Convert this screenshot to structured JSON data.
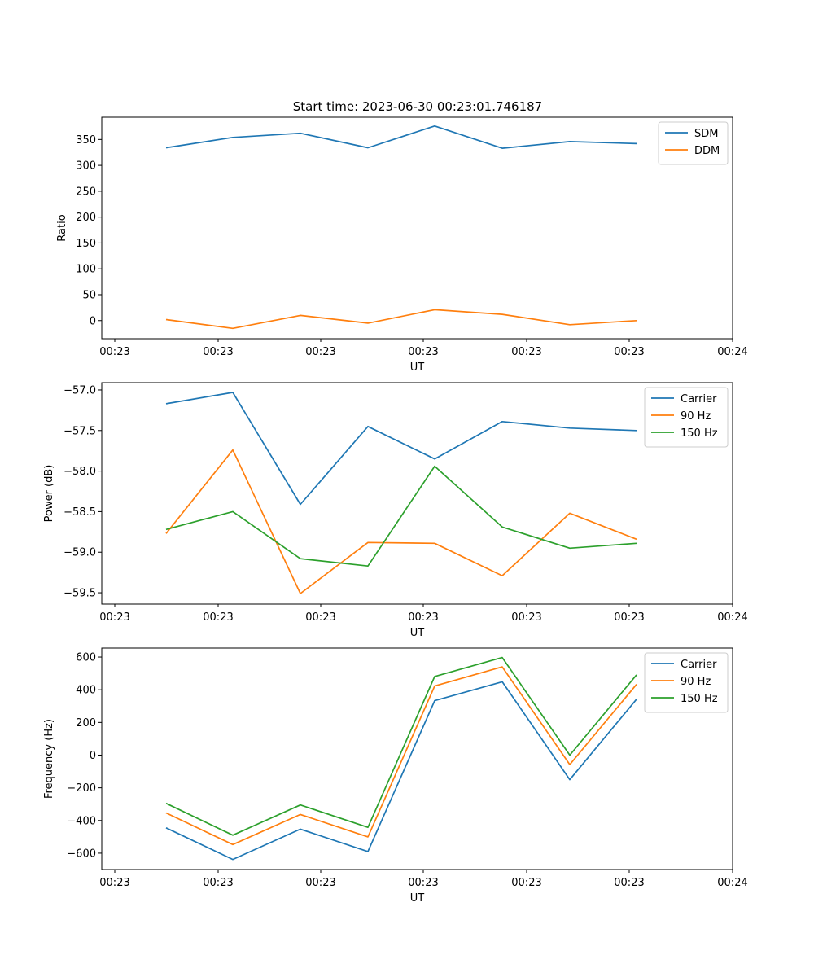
{
  "title": "Start time: 2023-06-30 00:23:01.746187",
  "colors": {
    "blue": "#1f77b4",
    "orange": "#ff7f0e",
    "green": "#2ca02c",
    "axis": "#000000",
    "legend_border": "#cccccc"
  },
  "chart_data": [
    {
      "type": "line",
      "title": "Start time: 2023-06-30 00:23:01.746187",
      "xlabel": "UT",
      "ylabel": "Ratio",
      "x_tick_labels": [
        "00:23",
        "00:23",
        "00:23",
        "00:23",
        "00:23",
        "00:23",
        "00:24"
      ],
      "ylim": [
        -35,
        393
      ],
      "y_ticks": [
        0,
        50,
        100,
        150,
        200,
        250,
        300,
        350
      ],
      "y_tick_labels": [
        "0",
        "50",
        "100",
        "150",
        "200",
        "250",
        "300",
        "350"
      ],
      "x": [
        1,
        2,
        3,
        4,
        5,
        6,
        7,
        8
      ],
      "series": [
        {
          "name": "SDM",
          "color": "#1f77b4",
          "values": [
            334,
            354,
            362,
            334,
            376,
            333,
            346,
            342
          ]
        },
        {
          "name": "DDM",
          "color": "#ff7f0e",
          "values": [
            2,
            -15,
            10,
            -5,
            21,
            12,
            -8,
            0
          ]
        }
      ],
      "legend": "upper right",
      "grid": false
    },
    {
      "type": "line",
      "xlabel": "UT",
      "ylabel": "Power (dB)",
      "x_tick_labels": [
        "00:23",
        "00:23",
        "00:23",
        "00:23",
        "00:23",
        "00:23",
        "00:24"
      ],
      "ylim": [
        -59.64,
        -56.91
      ],
      "y_ticks": [
        -59.5,
        -59.0,
        -58.5,
        -58.0,
        -57.5,
        -57.0
      ],
      "y_tick_labels": [
        "−59.5",
        "−59.0",
        "−58.5",
        "−58.0",
        "−57.5",
        "−57.0"
      ],
      "x": [
        1,
        2,
        3,
        4,
        5,
        6,
        7,
        8
      ],
      "series": [
        {
          "name": "Carrier",
          "color": "#1f77b4",
          "values": [
            -57.17,
            -57.03,
            -58.41,
            -57.45,
            -57.85,
            -57.39,
            -57.47,
            -57.5
          ]
        },
        {
          "name": "90 Hz",
          "color": "#ff7f0e",
          "values": [
            -58.77,
            -57.74,
            -59.51,
            -58.88,
            -58.89,
            -59.29,
            -58.52,
            -58.84
          ]
        },
        {
          "name": "150 Hz",
          "color": "#2ca02c",
          "values": [
            -58.72,
            -58.5,
            -59.08,
            -59.17,
            -57.94,
            -58.69,
            -58.95,
            -58.89
          ]
        }
      ],
      "legend": "upper right",
      "grid": false
    },
    {
      "type": "line",
      "xlabel": "UT",
      "ylabel": "Frequency (Hz)",
      "x_tick_labels": [
        "00:23",
        "00:23",
        "00:23",
        "00:23",
        "00:23",
        "00:23",
        "00:24"
      ],
      "ylim": [
        -700,
        655
      ],
      "y_ticks": [
        -600,
        -400,
        -200,
        0,
        200,
        400,
        600
      ],
      "y_tick_labels": [
        "−600",
        "−400",
        "−200",
        "0",
        "200",
        "400",
        "600"
      ],
      "x": [
        1,
        2,
        3,
        4,
        5,
        6,
        7,
        8
      ],
      "series": [
        {
          "name": "Carrier",
          "color": "#1f77b4",
          "values": [
            -445,
            -638,
            -453,
            -590,
            333,
            449,
            -150,
            342
          ]
        },
        {
          "name": "90 Hz",
          "color": "#ff7f0e",
          "values": [
            -354,
            -547,
            -363,
            -500,
            423,
            540,
            -58,
            433
          ]
        },
        {
          "name": "150 Hz",
          "color": "#2ca02c",
          "values": [
            -295,
            -490,
            -305,
            -442,
            481,
            597,
            0,
            491
          ]
        }
      ],
      "legend": "upper right",
      "grid": false
    }
  ]
}
